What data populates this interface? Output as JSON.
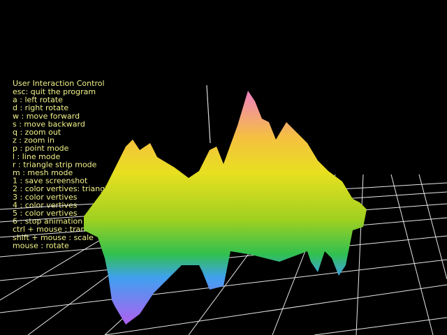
{
  "help": {
    "title": "User Interaction Control",
    "lines": [
      "esc: quit the program",
      " a  : left rotate",
      " d  : right rotate",
      " w  : move forward",
      "  s  : move backward",
      "  q  : zoom out",
      "  z  : zoom in",
      "  p  : point mode",
      "  l  : line mode",
      "  r  : triangle strip mode",
      "  m  : mesh mode",
      "   1   : save screenshot",
      "   2   : color vertives: triangle",
      "   3   : color vertives",
      "   4   : color vertives",
      "   5   : color vertives",
      "   6   : stop animation",
      "  ctrl + mouse : translate",
      "  shift + mouse : scale",
      "  mouse : rotate"
    ]
  }
}
